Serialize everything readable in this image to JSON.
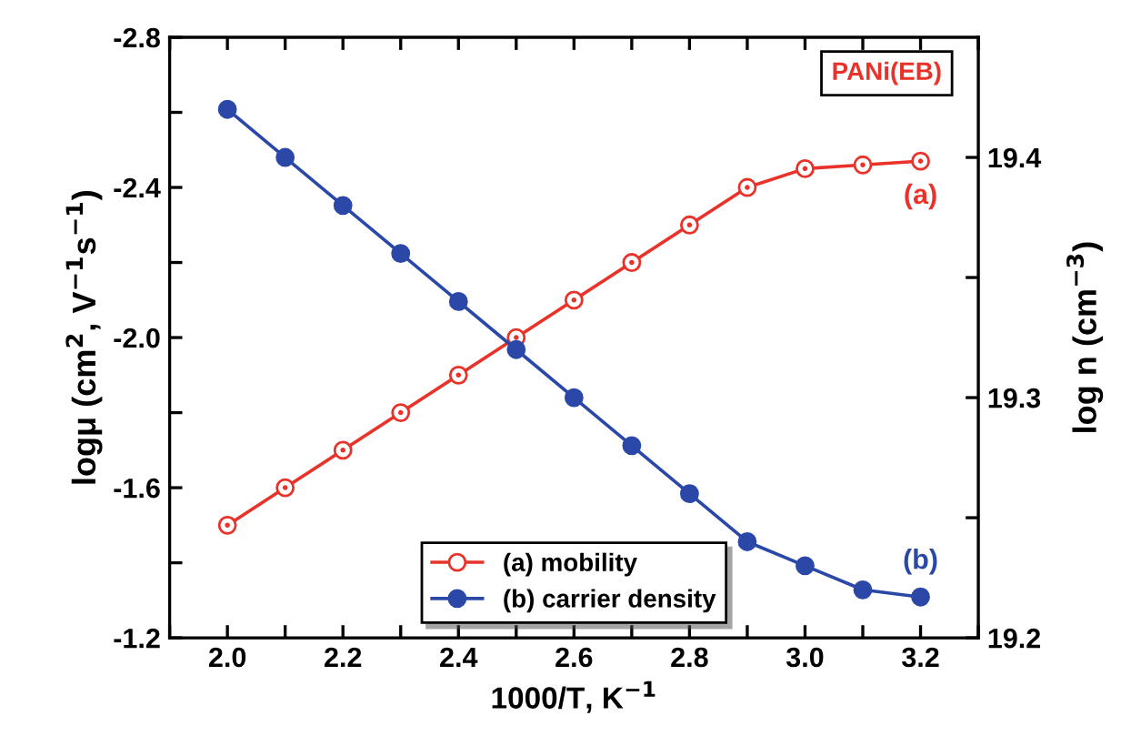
{
  "chart_data": {
    "type": "line",
    "xlabel": "1000/T, K$^{−1}$",
    "ylabel": "logμ (cm$^{2}$, V$^{−1}$s$^{−1}$)",
    "y2label": "log n (cm$^{−3}$)",
    "x": [
      2.0,
      2.1,
      2.2,
      2.3,
      2.4,
      2.5,
      2.6,
      2.7,
      2.8,
      2.9,
      3.0,
      3.1,
      3.2
    ],
    "series": [
      {
        "name": "(a) mobility",
        "color": "#e8322a",
        "axis": "y",
        "values": [
          -1.5,
          -1.6,
          -1.7,
          -1.8,
          -1.9,
          -2.0,
          -2.1,
          -2.2,
          -2.3,
          -2.4,
          -2.45,
          -2.46,
          -2.47
        ]
      },
      {
        "name": "(b) carrier density",
        "color": "#2b48a8",
        "axis": "y2",
        "values": [
          19.42,
          19.4,
          19.38,
          19.36,
          19.34,
          19.32,
          19.3,
          19.28,
          19.26,
          19.24,
          19.23,
          19.22,
          19.217
        ]
      }
    ],
    "annotations": [
      "PANi(EB)",
      "(a)",
      "(b)"
    ],
    "xlim": [
      1.9,
      3.3
    ],
    "xticks": [
      {
        "value": 1.9,
        "label": null
      },
      {
        "value": 2.0,
        "label": "2.0"
      },
      {
        "value": 2.1,
        "label": null
      },
      2.2,
      {
        "value": 2.3,
        "label": null
      },
      2.4,
      {
        "value": 2.5,
        "label": null
      },
      2.6,
      {
        "value": 2.7,
        "label": null
      },
      2.8,
      {
        "value": 2.9,
        "label": null
      },
      {
        "value": 3.0,
        "label": "3.0"
      },
      {
        "value": 3.1,
        "label": null
      },
      3.2,
      {
        "value": 3.3,
        "label": null
      }
    ],
    "ylim": [
      -1.2,
      -2.8
    ],
    "yticks": [
      -2.8,
      {
        "value": -2.6,
        "label": null
      },
      -2.4,
      {
        "value": -2.2,
        "label": null
      },
      {
        "value": -2.0,
        "label": "-2.0"
      },
      {
        "value": -1.8,
        "label": null
      },
      -1.6,
      {
        "value": -1.4,
        "label": null
      },
      -1.2
    ],
    "y2lim": [
      19.2,
      19.45
    ],
    "y2ticks": [
      19.2,
      {
        "value": 19.25,
        "label": null
      },
      19.3,
      {
        "value": 19.35,
        "label": null
      },
      19.4
    ],
    "legend": "bottom",
    "grid": false,
    "marker": "circle",
    "line_style": "solid"
  }
}
